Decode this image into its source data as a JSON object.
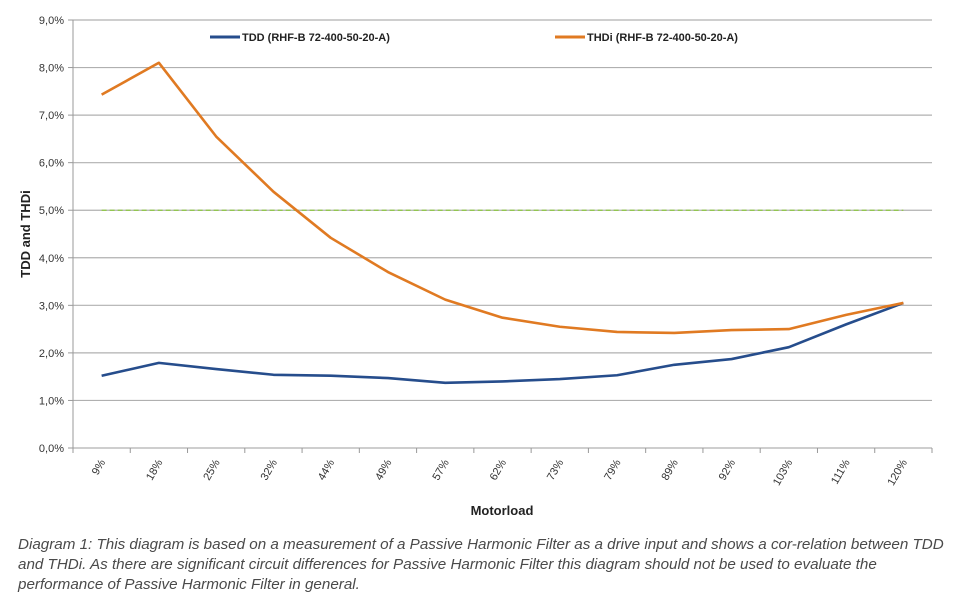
{
  "chart_data": {
    "type": "line",
    "xlabel": "Motorload",
    "ylabel": "TDD and THDi",
    "categories": [
      "9%",
      "18%",
      "25%",
      "32%",
      "44%",
      "49%",
      "57%",
      "62%",
      "73%",
      "79%",
      "89%",
      "92%",
      "103%",
      "111%",
      "120%"
    ],
    "yticks": [
      "0,0%",
      "1,0%",
      "2,0%",
      "3,0%",
      "4,0%",
      "5,0%",
      "6,0%",
      "7,0%",
      "8,0%",
      "9,0%"
    ],
    "ylim": [
      0,
      9
    ],
    "grid": true,
    "legend_position": "top",
    "series": [
      {
        "name": "TDD (RHF-B 72-400-50-20-A)",
        "color": "#264d8c",
        "values": [
          1.52,
          1.79,
          1.66,
          1.54,
          1.52,
          1.47,
          1.37,
          1.4,
          1.45,
          1.53,
          1.75,
          1.87,
          2.12,
          2.6,
          3.05
        ]
      },
      {
        "name": "THDi (RHF-B 72-400-50-20-A)",
        "color": "#e07a22",
        "values": [
          7.43,
          8.1,
          6.55,
          5.39,
          4.42,
          3.7,
          3.12,
          2.74,
          2.55,
          2.44,
          2.42,
          2.48,
          2.5,
          2.8,
          3.05
        ]
      }
    ],
    "reference_line": {
      "value": 5.0,
      "color": "#8cc63f"
    }
  },
  "caption": "Diagram 1: This diagram is based on a measurement of a Passive Harmonic Filter as a drive input and shows a cor-relation between TDD and THDi. As there are significant circuit differences for Passive Harmonic Filter this diagram should not be used to evaluate the performance of Passive Harmonic Filter in general."
}
